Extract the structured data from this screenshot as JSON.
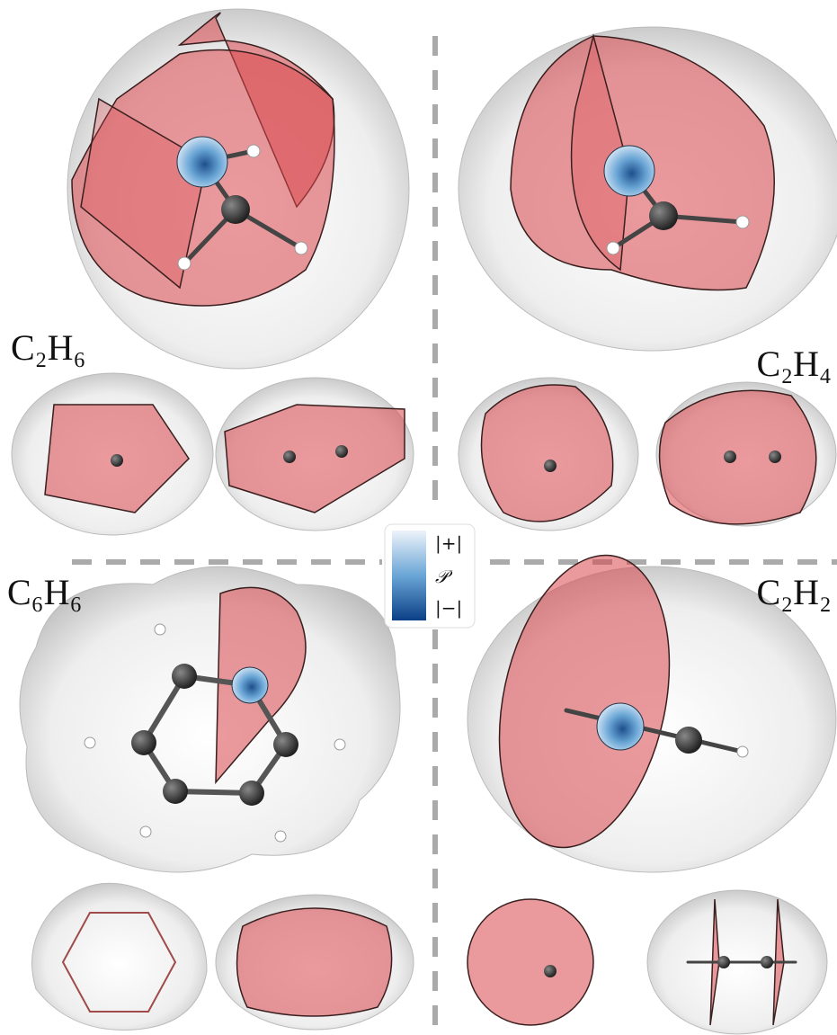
{
  "labels": {
    "top_left": "C₂H₆",
    "top_right": "C₂H₄",
    "bottom_left": "C₆H₆",
    "bottom_right": "C₂H₂"
  },
  "colorbar": {
    "top": "|+|",
    "symbol": "𝒫",
    "bottom": "|−|"
  }
}
